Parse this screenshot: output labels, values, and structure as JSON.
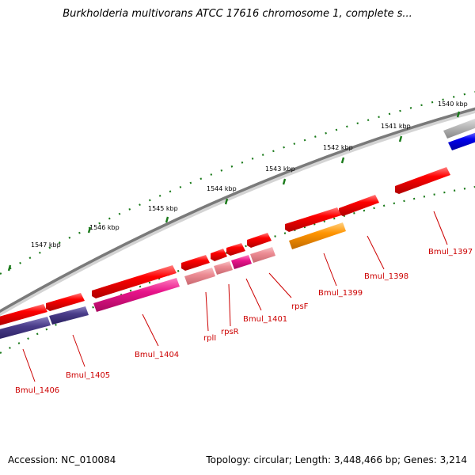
{
  "map": {
    "title": "Burkholderia multivorans ATCC 17616 chromosome 1, complete s...",
    "accession": "Accession: NC_010084",
    "summary": "Topology: circular; Length: 3,448,466 bp; Genes: 3,214"
  },
  "ticks": [
    {
      "label": "1540 kbp"
    },
    {
      "label": "1541 kbp"
    },
    {
      "label": "1542 kbp"
    },
    {
      "label": "1543 kbp"
    },
    {
      "label": "1544 kbp"
    },
    {
      "label": "1545 kbp"
    },
    {
      "label": "1546 kbp"
    },
    {
      "label": "1547 kbp"
    }
  ],
  "genes": [
    {
      "label": "Bmul_1397"
    },
    {
      "label": "Bmul_1398"
    },
    {
      "label": "Bmul_1399"
    },
    {
      "label": "rpsF"
    },
    {
      "label": "Bmul_1401"
    },
    {
      "label": "rpsR"
    },
    {
      "label": "rplI"
    },
    {
      "label": "Bmul_1404"
    },
    {
      "label": "Bmul_1405"
    },
    {
      "label": "Bmul_1406"
    }
  ],
  "colors": {
    "backbone": "#808080",
    "tick": "#1a7a1a",
    "gene_red": "#e60000",
    "gene_pink": "#e8808a",
    "gene_magenta": "#e0107a",
    "gene_purple": "#4a3d8a",
    "gene_orange": "#ff9000",
    "gene_blue": "#0000ee",
    "gene_grey": "#aaaaaa",
    "label": "#cc0000"
  }
}
